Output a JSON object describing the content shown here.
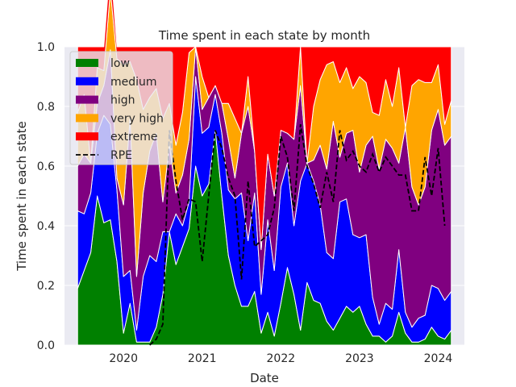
{
  "chart_data": {
    "type": "area",
    "title": "Time spent in each state by month",
    "xlabel": "Date",
    "ylabel": "Time spent in each state",
    "x_ticks": [
      "2020",
      "2021",
      "2022",
      "2023",
      "2024"
    ],
    "y_ticks": [
      "0.0",
      "0.2",
      "0.4",
      "0.6",
      "0.8",
      "1.0"
    ],
    "ylim": [
      0,
      1.0
    ],
    "xlim": [
      "2019-04",
      "2024-05"
    ],
    "grid": true,
    "legend_position": "top-left",
    "months": [
      "2019-06",
      "2019-07",
      "2019-08",
      "2019-09",
      "2019-10",
      "2019-11",
      "2019-12",
      "2020-01",
      "2020-02",
      "2020-03",
      "2020-04",
      "2020-05",
      "2020-06",
      "2020-07",
      "2020-08",
      "2020-09",
      "2020-10",
      "2020-11",
      "2020-12",
      "2021-01",
      "2021-02",
      "2021-03",
      "2021-04",
      "2021-05",
      "2021-06",
      "2021-07",
      "2021-08",
      "2021-09",
      "2021-10",
      "2021-11",
      "2021-12",
      "2022-01",
      "2022-02",
      "2022-03",
      "2022-04",
      "2022-05",
      "2022-06",
      "2022-07",
      "2022-08",
      "2022-09",
      "2022-10",
      "2022-11",
      "2022-12",
      "2023-01",
      "2023-02",
      "2023-03",
      "2023-04",
      "2023-05",
      "2023-06",
      "2023-07",
      "2023-08",
      "2023-09",
      "2023-10",
      "2023-11",
      "2023-12",
      "2024-01",
      "2024-02",
      "2024-03"
    ],
    "series": [
      {
        "name": "low",
        "color": "#008000",
        "values": [
          0.19,
          0.25,
          0.31,
          0.5,
          0.41,
          0.42,
          0.28,
          0.04,
          0.14,
          0.01,
          0.01,
          0.01,
          0.06,
          0.17,
          0.38,
          0.27,
          0.33,
          0.39,
          0.6,
          0.5,
          0.54,
          0.72,
          0.5,
          0.3,
          0.2,
          0.13,
          0.13,
          0.18,
          0.04,
          0.11,
          0.03,
          0.14,
          0.26,
          0.17,
          0.05,
          0.21,
          0.15,
          0.14,
          0.08,
          0.05,
          0.09,
          0.13,
          0.11,
          0.13,
          0.07,
          0.03,
          0.03,
          0.01,
          0.03,
          0.11,
          0.04,
          0.01,
          0.01,
          0.02,
          0.06,
          0.03,
          0.02,
          0.05
        ]
      },
      {
        "name": "medium",
        "color": "#0000ff",
        "values": [
          0.26,
          0.19,
          0.2,
          0.21,
          0.36,
          0.32,
          0.24,
          0.19,
          0.11,
          0.04,
          0.22,
          0.29,
          0.22,
          0.21,
          0.0,
          0.17,
          0.07,
          0.09,
          0.3,
          0.21,
          0.19,
          0.12,
          0.21,
          0.22,
          0.29,
          0.38,
          0.22,
          0.33,
          0.13,
          0.31,
          0.22,
          0.39,
          0.35,
          0.23,
          0.5,
          0.4,
          0.4,
          0.33,
          0.23,
          0.24,
          0.39,
          0.36,
          0.26,
          0.23,
          0.3,
          0.13,
          0.04,
          0.13,
          0.09,
          0.21,
          0.07,
          0.05,
          0.08,
          0.08,
          0.14,
          0.16,
          0.13,
          0.13
        ]
      },
      {
        "name": "high",
        "color": "#800080",
        "values": [
          0.15,
          0.2,
          0.1,
          0.1,
          0.1,
          0.25,
          0.04,
          0.24,
          0.51,
          0.18,
          0.28,
          0.35,
          0.43,
          0.1,
          0.29,
          0.07,
          0.17,
          0.21,
          0.1,
          0.08,
          0.1,
          0.03,
          0.1,
          0.17,
          0.07,
          0.2,
          0.45,
          0.14,
          0.15,
          0.22,
          0.25,
          0.19,
          0.1,
          0.29,
          0.32,
          0.0,
          0.07,
          0.2,
          0.28,
          0.46,
          0.15,
          0.22,
          0.35,
          0.22,
          0.3,
          0.54,
          0.52,
          0.55,
          0.54,
          0.29,
          0.62,
          0.47,
          0.38,
          0.43,
          0.52,
          0.6,
          0.52,
          0.52
        ]
      },
      {
        "name": "very high",
        "color": "#ffa500",
        "values": [
          0.18,
          0.2,
          0.0,
          0.12,
          0.05,
          0.2,
          0.4,
          0.47,
          0.19,
          0.66,
          0.28,
          0.18,
          0.15,
          0.28,
          0.14,
          0.16,
          0.21,
          0.29,
          0.0,
          0.11,
          0.0,
          0.0,
          0.0,
          0.12,
          0.2,
          0.0,
          0.1,
          0.0,
          0.0,
          0.0,
          0.0,
          0.0,
          0.0,
          0.0,
          0.13,
          0.0,
          0.18,
          0.22,
          0.35,
          0.2,
          0.25,
          0.22,
          0.14,
          0.32,
          0.21,
          0.08,
          0.18,
          0.2,
          0.14,
          0.32,
          0.0,
          0.34,
          0.42,
          0.35,
          0.16,
          0.15,
          0.07,
          0.12
        ]
      },
      {
        "name": "extreme",
        "color": "#ff0000",
        "values": [
          0.22,
          0.16,
          0.39,
          0.07,
          0.08,
          0.09,
          0.04,
          0.06,
          0.05,
          0.11,
          0.21,
          0.17,
          0.14,
          0.24,
          0.19,
          0.33,
          0.22,
          0.02,
          0.0,
          0.1,
          0.17,
          0.13,
          0.19,
          0.19,
          0.24,
          0.29,
          0.1,
          0.35,
          0.68,
          0.36,
          0.5,
          0.28,
          0.29,
          0.31,
          0.0,
          0.39,
          0.2,
          0.11,
          0.06,
          0.05,
          0.12,
          0.07,
          0.14,
          0.1,
          0.12,
          0.22,
          0.23,
          0.11,
          0.2,
          0.07,
          0.27,
          0.13,
          0.11,
          0.12,
          0.12,
          0.06,
          0.26,
          0.18
        ]
      }
    ],
    "rpe": {
      "name": "RPE",
      "color": "#000000",
      "values": [
        null,
        null,
        null,
        null,
        null,
        null,
        null,
        null,
        null,
        null,
        null,
        0.0,
        0.02,
        0.07,
        0.72,
        0.55,
        0.42,
        0.49,
        0.48,
        0.28,
        0.5,
        0.72,
        0.66,
        0.56,
        0.5,
        0.22,
        0.55,
        0.33,
        0.35,
        0.37,
        0.46,
        0.7,
        0.63,
        0.45,
        0.74,
        0.6,
        0.54,
        0.46,
        0.58,
        0.48,
        0.72,
        0.62,
        0.65,
        0.6,
        0.58,
        0.64,
        0.58,
        0.63,
        0.6,
        0.57,
        0.57,
        0.45,
        0.45,
        0.63,
        0.5,
        0.66,
        0.4,
        null
      ]
    }
  }
}
